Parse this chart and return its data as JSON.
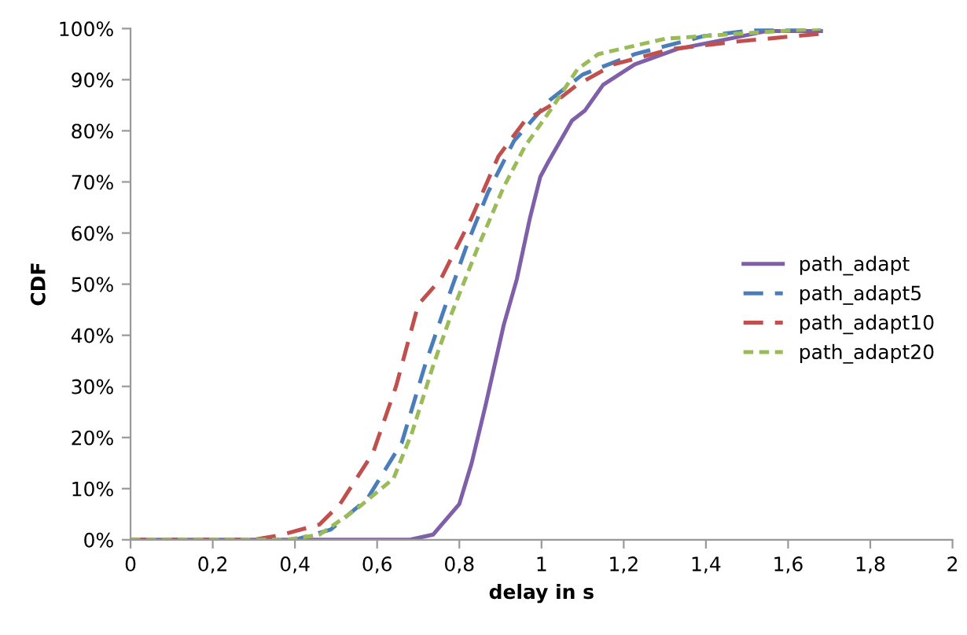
{
  "chart_data": {
    "type": "line",
    "xlabel": "delay in s",
    "ylabel": "CDF",
    "xlim": [
      0,
      2
    ],
    "xticks": [
      0,
      {
        "value": 0.2,
        "label": "0,2"
      },
      {
        "value": 0.4,
        "label": "0,4"
      },
      {
        "value": 0.6,
        "label": "0,6"
      },
      {
        "value": 0.8,
        "label": "0,8"
      },
      1,
      {
        "value": 1.2,
        "label": "1,2"
      },
      {
        "value": 1.4,
        "label": "1,4"
      },
      {
        "value": 1.6,
        "label": "1,6"
      },
      {
        "value": 1.8,
        "label": "1,8"
      },
      2
    ],
    "ylim": [
      0,
      100
    ],
    "yticks": [
      {
        "value": 0,
        "label": "0%"
      },
      {
        "value": 10,
        "label": "10%"
      },
      {
        "value": 20,
        "label": "20%"
      },
      {
        "value": 30,
        "label": "30%"
      },
      {
        "value": 40,
        "label": "40%"
      },
      {
        "value": 50,
        "label": "50%"
      },
      {
        "value": 60,
        "label": "60%"
      },
      {
        "value": 70,
        "label": "70%"
      },
      {
        "value": 80,
        "label": "80%"
      },
      {
        "value": 90,
        "label": "90%"
      },
      {
        "value": 100,
        "label": "100%"
      }
    ],
    "grid": false,
    "legend": "right",
    "marker": "none",
    "series": [
      {
        "name": "path_adapt",
        "color": "#7f5fa8",
        "line_style": "solid",
        "x": [
          0,
          0.68,
          0.736,
          0.8,
          0.83,
          0.863,
          0.908,
          0.94,
          0.972,
          0.997,
          1.017,
          1.074,
          1.106,
          1.15,
          1.227,
          1.33,
          1.456,
          1.547,
          1.68
        ],
        "values": [
          0,
          0,
          1,
          7,
          15,
          26,
          42,
          51,
          63,
          71,
          74,
          82,
          84,
          89,
          93,
          96,
          98,
          99.5,
          99.5
        ]
      },
      {
        "name": "path_adapt5",
        "color": "#4a7ebb",
        "line_style": "dashed",
        "x": [
          0,
          0.4,
          0.487,
          0.576,
          0.66,
          0.716,
          0.767,
          0.82,
          0.87,
          0.933,
          1.02,
          1.1,
          1.227,
          1.393,
          1.547,
          1.68
        ],
        "values": [
          0,
          0,
          2,
          8,
          19,
          34,
          46,
          58,
          68,
          78,
          86,
          91,
          95,
          98.5,
          100,
          100
        ]
      },
      {
        "name": "path_adapt10",
        "color": "#c0504d",
        "line_style": "dashed",
        "x": [
          0,
          0.3,
          0.37,
          0.46,
          0.51,
          0.59,
          0.646,
          0.7,
          0.755,
          0.83,
          0.895,
          0.96,
          1.023,
          1.087,
          1.176,
          1.317,
          1.48,
          1.68
        ],
        "values": [
          0,
          0,
          1,
          3,
          7,
          17,
          30,
          46,
          51,
          63,
          75,
          82,
          85,
          89,
          93,
          96,
          97.5,
          99
        ]
      },
      {
        "name": "path_adapt20",
        "color": "#9bbb59",
        "line_style": "dotted",
        "x": [
          0,
          0.38,
          0.46,
          0.55,
          0.64,
          0.685,
          0.736,
          0.78,
          0.844,
          0.908,
          0.96,
          1.03,
          1.087,
          1.138,
          1.3,
          1.48,
          1.68
        ],
        "values": [
          0,
          0,
          1,
          6,
          12,
          21,
          34,
          44,
          57,
          69,
          77,
          85,
          92,
          95,
          98,
          99,
          100
        ]
      }
    ]
  }
}
